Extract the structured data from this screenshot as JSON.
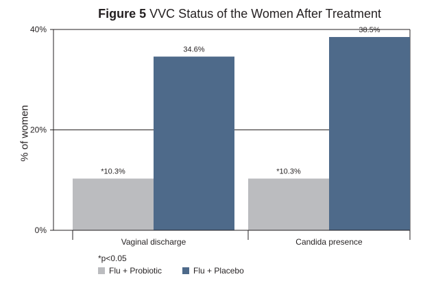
{
  "title": {
    "prefix": "Figure 5",
    "text": "VVC Status of the Women After Treatment"
  },
  "footnote": "*p<0.05",
  "colors": {
    "probiotic": "#bbbcbf",
    "placebo": "#4e6a8a",
    "axis": "#231f20"
  },
  "chart_data": {
    "type": "bar",
    "title": "VVC Status of the Women After Treatment",
    "xlabel": "",
    "ylabel": "% of women",
    "ylim": [
      0,
      40
    ],
    "yticks": [
      {
        "value": 0,
        "label": "0%"
      },
      {
        "value": 20,
        "label": "20%"
      },
      {
        "value": 40,
        "label": "40%"
      }
    ],
    "categories": [
      "Vaginal discharge",
      "Candida presence"
    ],
    "series": [
      {
        "name": "Flu + Probiotic",
        "values": [
          10.3,
          10.3
        ],
        "labels": [
          "*10.3%",
          "*10.3%"
        ]
      },
      {
        "name": "Flu + Placebo",
        "values": [
          34.6,
          38.5
        ],
        "labels": [
          "34.6%",
          "38.5%"
        ]
      }
    ],
    "grid": "horizontal at 20%",
    "legend": "bottom-left"
  }
}
